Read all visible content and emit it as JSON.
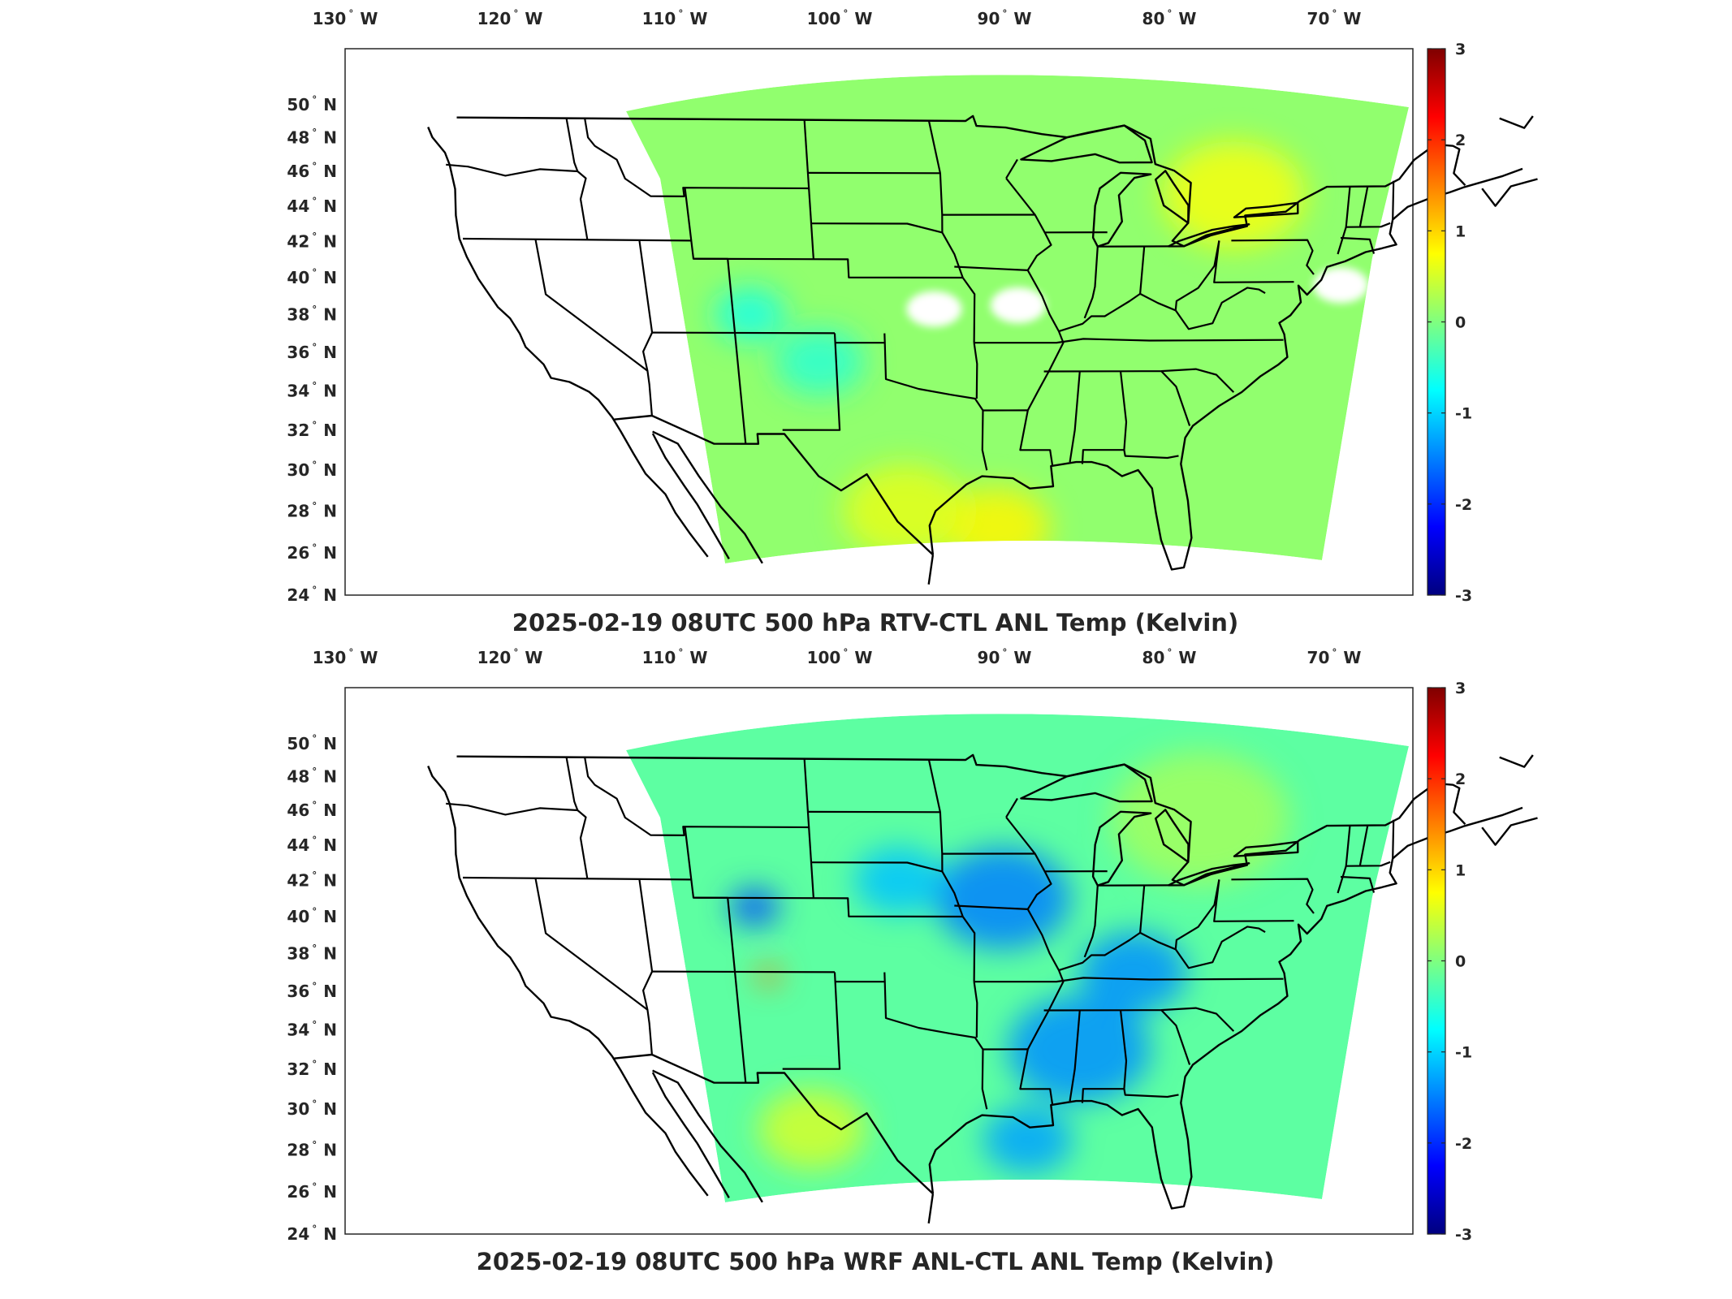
{
  "panels": [
    {
      "id": "top",
      "title": "2025-02-19 08UTC 500 hPa RTV-CTL ANL Temp (Kelvin)",
      "lon_ticks": [
        "130",
        "120",
        "110",
        "100",
        "90",
        "80",
        "70"
      ],
      "lon_suffix": "W",
      "lat_ticks": [
        "50",
        "48",
        "46",
        "44",
        "42",
        "40",
        "38",
        "36",
        "34",
        "32",
        "30",
        "28",
        "26",
        "24"
      ],
      "lat_suffix": "N",
      "colorbar_ticks": [
        "3",
        "2",
        "1",
        "0",
        "-1",
        "-2",
        "-3"
      ],
      "dominant_value": 0.1,
      "features": [
        {
          "value": 0.7,
          "lon": -80.0,
          "lat": 44.6,
          "r": 4.0,
          "note": "warm band NY/ON"
        },
        {
          "value": 0.8,
          "lon": -93.0,
          "lat": 27.2,
          "r": 3.0,
          "note": "warm Gulf"
        },
        {
          "value": 0.6,
          "lon": -99.0,
          "lat": 28.0,
          "r": 3.5,
          "note": "warm S Texas"
        },
        {
          "value": -0.6,
          "lon": -108.0,
          "lat": 38.0,
          "r": 2.0,
          "note": "cool Rockies"
        },
        {
          "value": -0.5,
          "lon": -104.0,
          "lat": 35.5,
          "r": 2.5,
          "note": "cool NM"
        }
      ],
      "missing": [
        {
          "lon": -92.0,
          "lat": 38.5,
          "note": "white patch Missouri"
        },
        {
          "lon": -97.0,
          "lat": 38.3,
          "note": "white patch Kansas"
        },
        {
          "lon": -73.0,
          "lat": 39.5,
          "note": "white patch offshore"
        }
      ]
    },
    {
      "id": "bottom",
      "title": "2025-02-19 08UTC 500 hPa WRF ANL-CTL ANL Temp (Kelvin)",
      "lon_ticks": [
        "130",
        "120",
        "110",
        "100",
        "90",
        "80",
        "70"
      ],
      "lon_suffix": "W",
      "lat_ticks": [
        "50",
        "48",
        "46",
        "44",
        "42",
        "40",
        "38",
        "36",
        "34",
        "32",
        "30",
        "28",
        "26",
        "24"
      ],
      "lat_suffix": "N",
      "colorbar_ticks": [
        "3",
        "2",
        "1",
        "0",
        "-1",
        "-2",
        "-3"
      ],
      "dominant_value": -0.2,
      "features": [
        {
          "value": -1.5,
          "lon": -93.0,
          "lat": 41.0,
          "r": 3.8,
          "note": "cold Iowa/Missouri"
        },
        {
          "value": -1.4,
          "lon": -88.0,
          "lat": 33.0,
          "r": 4.0,
          "note": "cold Mississippi/Alabama"
        },
        {
          "value": -1.4,
          "lon": -85.0,
          "lat": 37.0,
          "r": 3.0,
          "note": "cold Kentucky/Tennessee"
        },
        {
          "value": -1.3,
          "lon": -91.0,
          "lat": 28.5,
          "r": 2.5,
          "note": "cold Gulf"
        },
        {
          "value": -1.8,
          "lon": -107.5,
          "lat": 40.5,
          "r": 1.4,
          "note": "cold Colorado Rockies"
        },
        {
          "value": -1.1,
          "lon": -99.0,
          "lat": 42.0,
          "r": 2.5,
          "note": "cool Nebraska"
        },
        {
          "value": 1.6,
          "lon": -107.0,
          "lat": 36.8,
          "r": 0.7,
          "note": "warm streak NM"
        },
        {
          "value": 0.5,
          "lon": -105.0,
          "lat": 29.0,
          "r": 3.0,
          "note": "warm SW Texas"
        },
        {
          "value": 0.2,
          "lon": -82.0,
          "lat": 45.5,
          "r": 5.0,
          "note": "near-zero Great Lakes"
        }
      ],
      "missing": []
    }
  ],
  "colorbar": {
    "min": -3,
    "max": 3,
    "colormap": "jet"
  }
}
